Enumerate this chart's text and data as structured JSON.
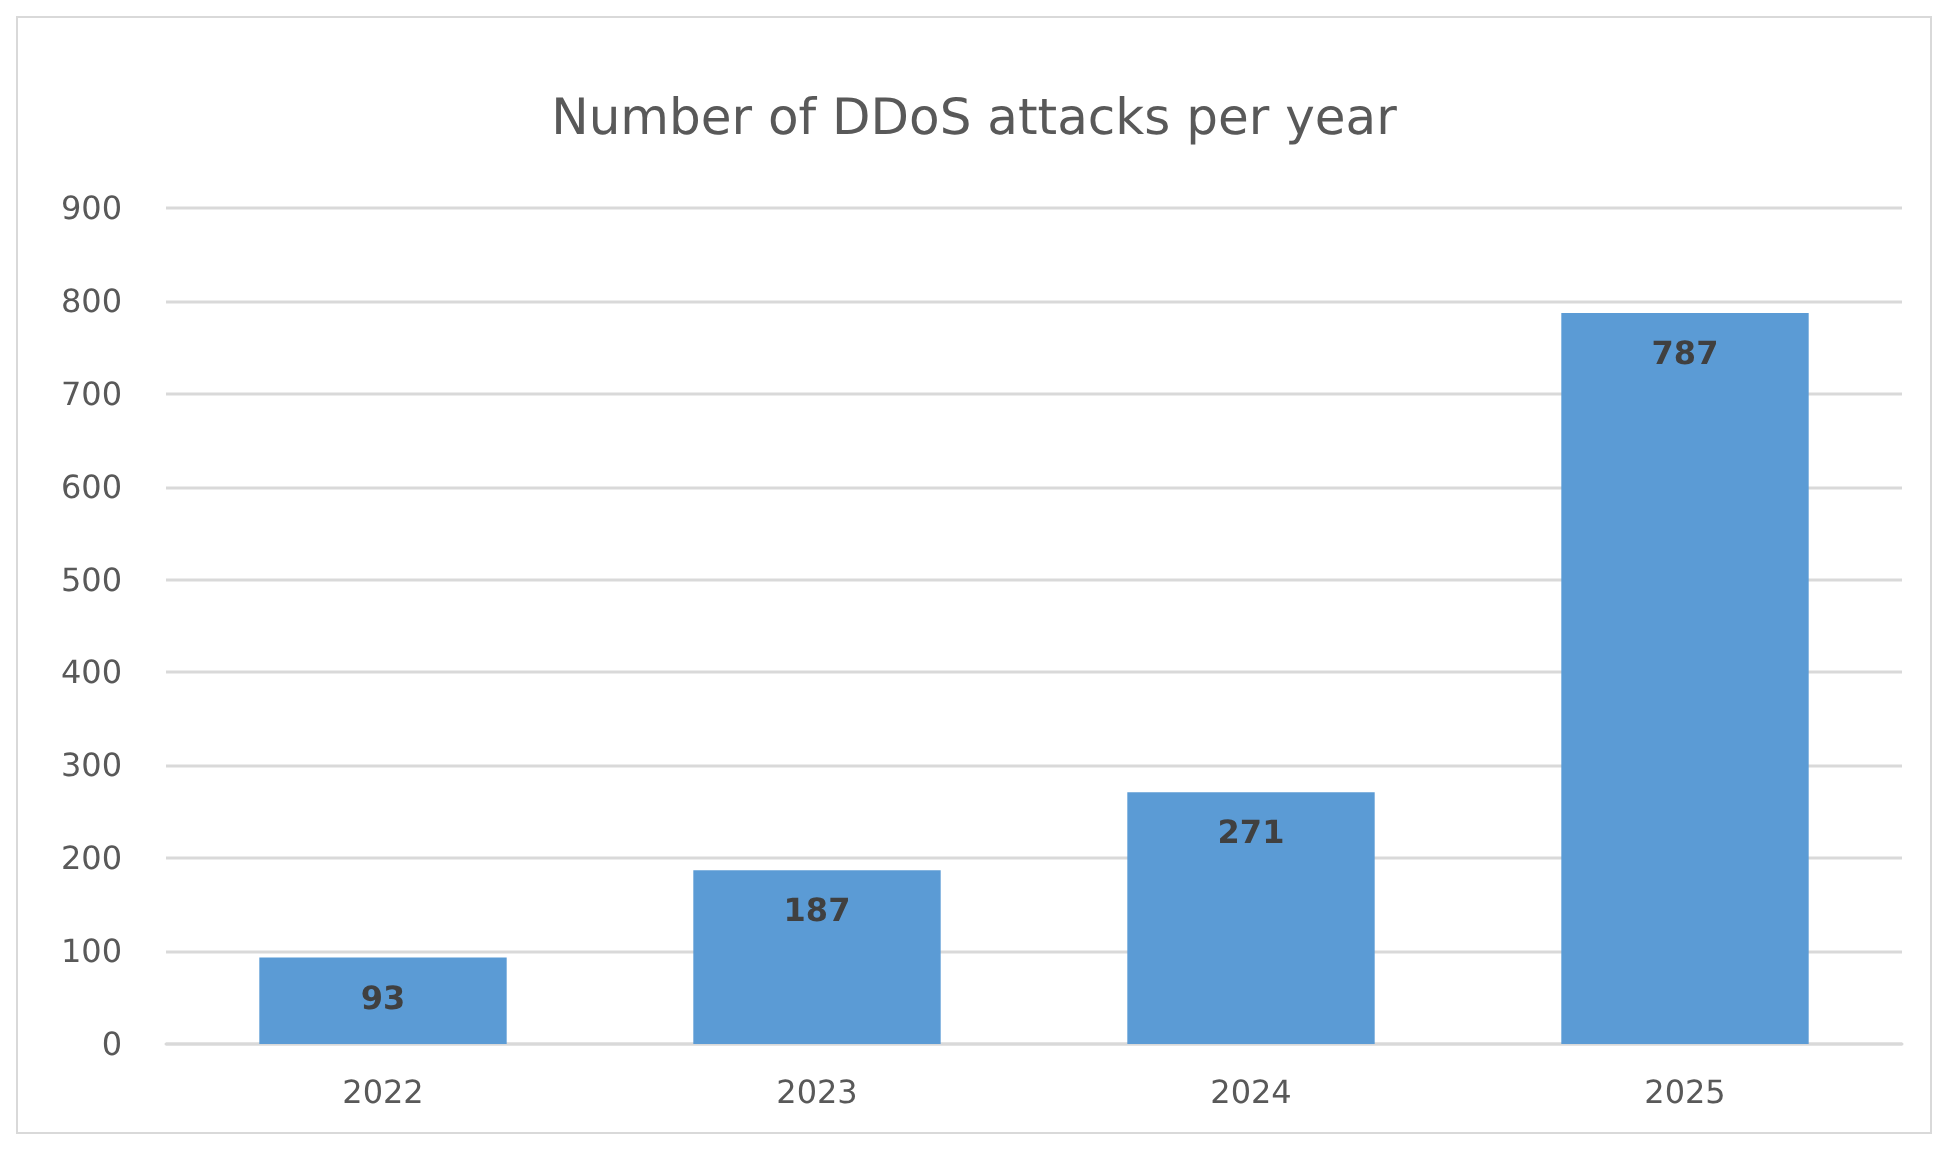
{
  "chart_data": {
    "type": "bar",
    "title": "Number of DDoS attacks per year",
    "categories": [
      "2022",
      "2023",
      "2024",
      "2025"
    ],
    "values": [
      93,
      187,
      271,
      787
    ],
    "color": "#5b9bd5",
    "ylim": [
      0,
      900
    ],
    "yticks": [
      0,
      100,
      200,
      300,
      400,
      500,
      600,
      700,
      800,
      900
    ],
    "grid": "y",
    "data_labels": true
  }
}
